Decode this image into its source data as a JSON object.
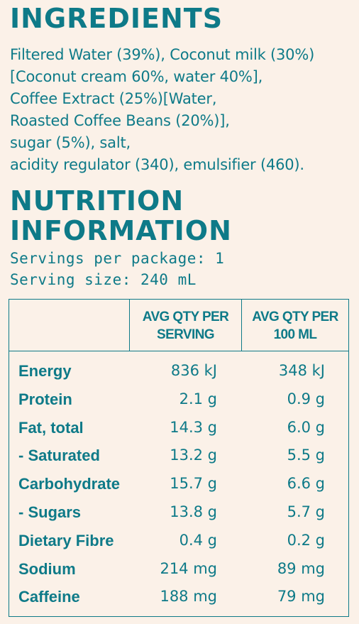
{
  "ingredients": {
    "heading": "INGREDIENTS",
    "lines": [
      "Filtered Water (39%), Coconut milk (30%)",
      "[Coconut cream 60%, water 40%],",
      "Coffee Extract (25%)[Water,",
      "Roasted Coffee Beans (20%)],",
      "sugar (5%), salt,",
      "acidity regulator (340), emulsifier (460)."
    ]
  },
  "nutrition": {
    "heading_line1": "NUTRITION",
    "heading_line2": "INFORMATION",
    "servings_per_package": "Servings per package: 1",
    "serving_size": "Serving size: 240 mL",
    "col_per_serving": [
      "AVG QTY PER",
      "SERVING"
    ],
    "col_per_100ml": [
      "AVG QTY PER",
      "100 ML"
    ],
    "rows": [
      {
        "label": "Energy",
        "per_serving": "836 kJ",
        "per_100ml": "348 kJ"
      },
      {
        "label": "Protein",
        "per_serving": "2.1 g",
        "per_100ml": "0.9 g"
      },
      {
        "label": "Fat, total",
        "per_serving": "14.3 g",
        "per_100ml": "6.0 g"
      },
      {
        "label": "- Saturated",
        "per_serving": "13.2 g",
        "per_100ml": "5.5 g"
      },
      {
        "label": "Carbohydrate",
        "per_serving": "15.7 g",
        "per_100ml": "6.6 g"
      },
      {
        "label": "- Sugars",
        "per_serving": "13.8 g",
        "per_100ml": "5.7 g"
      },
      {
        "label": "Dietary Fibre",
        "per_serving": "0.4 g",
        "per_100ml": "0.2 g"
      },
      {
        "label": "Sodium",
        "per_serving": "214 mg",
        "per_100ml": "89 mg"
      },
      {
        "label": "Caffeine",
        "per_serving": "188 mg",
        "per_100ml": "79 mg"
      }
    ]
  },
  "colors": {
    "text": "#0e7a88",
    "background": "#fbf1e8"
  }
}
